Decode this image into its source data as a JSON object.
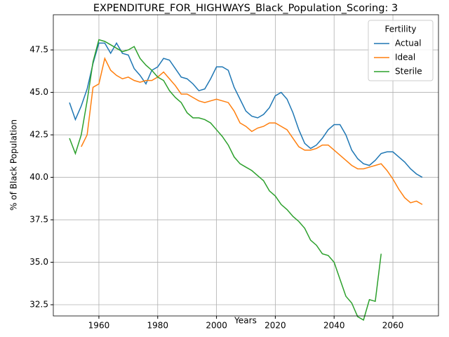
{
  "chart_data": {
    "type": "line",
    "title": "EXPENDITURE_FOR_HIGHWAYS_Black_Population_Scoring: 3",
    "x_label": "Years",
    "y_label": "% of Black Population",
    "legend_title": "Fertility",
    "legend_loc": "upper right",
    "grid": true,
    "xlim": [
      1944.5,
      2075.5
    ],
    "ylim": [
      31.84,
      49.57
    ],
    "xticks": [
      1960,
      1980,
      2000,
      2020,
      2040,
      2060
    ],
    "yticks": [
      32.5,
      {
        "value": 35,
        "label": "35.0"
      },
      37.5,
      {
        "value": 40,
        "label": "40.0"
      },
      42.5,
      {
        "value": 45,
        "label": "45.0"
      },
      47.5
    ],
    "x": [
      1950,
      1952,
      1954,
      1956,
      1958,
      1960,
      1962,
      1964,
      1966,
      1968,
      1970,
      1972,
      1974,
      1976,
      1978,
      1980,
      1982,
      1984,
      1986,
      1988,
      1990,
      1992,
      1994,
      1996,
      1998,
      2000,
      2002,
      2004,
      2006,
      2008,
      2010,
      2012,
      2014,
      2016,
      2018,
      2020,
      2022,
      2024,
      2026,
      2028,
      2030,
      2032,
      2034,
      2036,
      2038,
      2040,
      2042,
      2044,
      2046,
      2048,
      2050,
      2052,
      2054,
      2056,
      2058,
      2060,
      2062,
      2064,
      2066,
      2068,
      2070
    ],
    "series": [
      {
        "name": "Actual",
        "color": "#1f77b4",
        "values": [
          44.4,
          43.4,
          44.2,
          45.2,
          46.7,
          47.9,
          47.9,
          47.3,
          47.9,
          47.3,
          47.2,
          46.4,
          46.0,
          45.5,
          46.3,
          46.5,
          47.0,
          46.9,
          46.4,
          45.9,
          45.8,
          45.5,
          45.1,
          45.2,
          45.8,
          46.5,
          46.5,
          46.3,
          45.3,
          44.6,
          43.9,
          43.6,
          43.5,
          43.7,
          44.1,
          44.8,
          45.0,
          44.6,
          43.8,
          42.8,
          42.0,
          41.7,
          41.9,
          42.3,
          42.8,
          43.1,
          43.1,
          42.5,
          41.6,
          41.1,
          40.8,
          40.7,
          41.0,
          41.4,
          41.5,
          41.5,
          41.2,
          40.9,
          40.5,
          40.2,
          40.0
        ]
      },
      {
        "name": "Ideal",
        "color": "#ff7f0e",
        "values": [
          null,
          null,
          41.8,
          42.5,
          45.3,
          45.5,
          47.0,
          46.3,
          46.0,
          45.8,
          45.9,
          45.7,
          45.6,
          45.7,
          45.7,
          45.9,
          46.2,
          45.8,
          45.4,
          44.9,
          44.9,
          44.7,
          44.5,
          44.4,
          44.5,
          44.6,
          44.5,
          44.4,
          43.9,
          43.2,
          43.0,
          42.7,
          42.9,
          43.0,
          43.2,
          43.2,
          43.0,
          42.8,
          42.3,
          41.8,
          41.6,
          41.6,
          41.7,
          41.9,
          41.9,
          41.6,
          41.3,
          41.0,
          40.7,
          40.5,
          40.5,
          40.6,
          40.7,
          40.8,
          40.4,
          39.9,
          39.3,
          38.8,
          38.5,
          38.6,
          38.4
        ]
      },
      {
        "name": "Sterile",
        "color": "#2ca02c",
        "values": [
          42.3,
          41.4,
          42.5,
          44.5,
          46.8,
          48.1,
          48.0,
          47.8,
          47.6,
          47.4,
          47.5,
          47.7,
          47.0,
          46.6,
          46.3,
          45.9,
          45.7,
          45.1,
          44.7,
          44.4,
          43.8,
          43.5,
          43.5,
          43.4,
          43.2,
          42.8,
          42.4,
          41.9,
          41.2,
          40.8,
          40.6,
          40.4,
          40.1,
          39.8,
          39.2,
          38.9,
          38.4,
          38.1,
          37.7,
          37.4,
          37.0,
          36.3,
          36.0,
          35.5,
          35.4,
          35.0,
          34.0,
          33.0,
          32.6,
          31.8,
          31.6,
          32.8,
          32.7,
          35.5,
          null,
          null,
          null,
          null,
          null,
          null,
          null
        ]
      }
    ]
  }
}
